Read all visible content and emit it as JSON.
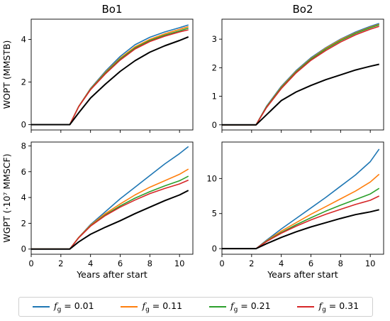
{
  "figure": {
    "legend": [
      {
        "label": "f_g = 0.01",
        "sym": "f",
        "sub": "g",
        "value": "= 0.01",
        "color": "#1f77b4"
      },
      {
        "label": "f_g = 0.11",
        "sym": "f",
        "sub": "g",
        "value": "= 0.11",
        "color": "#ff7f0e"
      },
      {
        "label": "f_g = 0.21",
        "sym": "f",
        "sub": "g",
        "value": "= 0.21",
        "color": "#2ca02c"
      },
      {
        "label": "f_g = 0.31",
        "sym": "f",
        "sub": "g",
        "value": "= 0.31",
        "color": "#d62728"
      }
    ],
    "reference_color": "#000000"
  },
  "chart_data": [
    {
      "type": "line",
      "panel": "top-left",
      "title": "Bo1",
      "ylabel": "WOPT (MMSTB)",
      "xlabel": "",
      "xlim": [
        0,
        10.9
      ],
      "ylim": [
        -0.25,
        4.95
      ],
      "xticks": [
        0,
        2,
        4,
        6,
        8,
        10
      ],
      "yticks": [
        0,
        2,
        4
      ],
      "show_xticklabels": false,
      "start": 2.6,
      "series": [
        {
          "name": "f_g = 0.01",
          "color": "#1f77b4",
          "x": [
            0,
            2.6,
            3.2,
            4.0,
            5.0,
            6.0,
            7.0,
            8.0,
            9.0,
            10.0,
            10.6
          ],
          "y": [
            0,
            0,
            0.85,
            1.7,
            2.5,
            3.2,
            3.75,
            4.1,
            4.35,
            4.55,
            4.68
          ]
        },
        {
          "name": "f_g = 0.11",
          "color": "#ff7f0e",
          "x": [
            0,
            2.6,
            3.2,
            4.0,
            5.0,
            6.0,
            7.0,
            8.0,
            9.0,
            10.0,
            10.6
          ],
          "y": [
            0,
            0,
            0.85,
            1.68,
            2.45,
            3.12,
            3.65,
            4.0,
            4.26,
            4.47,
            4.6
          ]
        },
        {
          "name": "f_g = 0.21",
          "color": "#2ca02c",
          "x": [
            0,
            2.6,
            3.2,
            4.0,
            5.0,
            6.0,
            7.0,
            8.0,
            9.0,
            10.0,
            10.6
          ],
          "y": [
            0,
            0,
            0.84,
            1.66,
            2.42,
            3.08,
            3.6,
            3.95,
            4.2,
            4.4,
            4.53
          ]
        },
        {
          "name": "f_g = 0.31",
          "color": "#d62728",
          "x": [
            0,
            2.6,
            3.2,
            4.0,
            5.0,
            6.0,
            7.0,
            8.0,
            9.0,
            10.0,
            10.6
          ],
          "y": [
            0,
            0,
            0.84,
            1.64,
            2.38,
            3.03,
            3.55,
            3.9,
            4.15,
            4.35,
            4.45
          ]
        },
        {
          "name": "",
          "color": "#000000",
          "x": [
            0,
            2.6,
            3.2,
            4.0,
            5.0,
            6.0,
            7.0,
            8.0,
            9.0,
            10.0,
            10.6
          ],
          "y": [
            0,
            0,
            0.55,
            1.25,
            1.9,
            2.5,
            3.0,
            3.4,
            3.7,
            3.95,
            4.12
          ]
        }
      ]
    },
    {
      "type": "line",
      "panel": "top-right",
      "title": "Bo2",
      "ylabel": "",
      "xlabel": "",
      "xlim": [
        0,
        10.9
      ],
      "ylim": [
        -0.18,
        3.7
      ],
      "xticks": [
        0,
        2,
        4,
        6,
        8,
        10
      ],
      "yticks": [
        0,
        1,
        2,
        3
      ],
      "show_xticklabels": false,
      "start": 2.3,
      "series": [
        {
          "name": "f_g = 0.01",
          "color": "#1f77b4",
          "x": [
            0,
            2.3,
            3.0,
            4.0,
            5.0,
            6.0,
            7.0,
            8.0,
            9.0,
            10.0,
            10.6
          ],
          "y": [
            0,
            0,
            0.65,
            1.35,
            1.9,
            2.35,
            2.7,
            3.0,
            3.25,
            3.45,
            3.55
          ]
        },
        {
          "name": "f_g = 0.11",
          "color": "#ff7f0e",
          "x": [
            0,
            2.3,
            3.0,
            4.0,
            5.0,
            6.0,
            7.0,
            8.0,
            9.0,
            10.0,
            10.6
          ],
          "y": [
            0,
            0,
            0.63,
            1.32,
            1.87,
            2.32,
            2.68,
            2.98,
            3.22,
            3.42,
            3.52
          ]
        },
        {
          "name": "f_g = 0.21",
          "color": "#2ca02c",
          "x": [
            0,
            2.3,
            3.0,
            4.0,
            5.0,
            6.0,
            7.0,
            8.0,
            9.0,
            10.0,
            10.6
          ],
          "y": [
            0,
            0,
            0.62,
            1.3,
            1.85,
            2.3,
            2.65,
            2.95,
            3.2,
            3.4,
            3.5
          ]
        },
        {
          "name": "f_g = 0.31",
          "color": "#d62728",
          "x": [
            0,
            2.3,
            3.0,
            4.0,
            5.0,
            6.0,
            7.0,
            8.0,
            9.0,
            10.0,
            10.6
          ],
          "y": [
            0,
            0,
            0.6,
            1.27,
            1.82,
            2.26,
            2.6,
            2.9,
            3.15,
            3.35,
            3.45
          ]
        },
        {
          "name": "",
          "color": "#000000",
          "x": [
            0,
            2.3,
            3.0,
            4.0,
            5.0,
            6.0,
            7.0,
            8.0,
            9.0,
            10.0,
            10.6
          ],
          "y": [
            0,
            0,
            0.35,
            0.85,
            1.15,
            1.38,
            1.58,
            1.75,
            1.92,
            2.05,
            2.12
          ]
        }
      ]
    },
    {
      "type": "line",
      "panel": "bottom-left",
      "title": "",
      "ylabel": "WGPT (·10⁷ MMSCF)",
      "xlabel": "Years after start",
      "xlim": [
        0,
        10.9
      ],
      "ylim": [
        -0.4,
        8.3
      ],
      "xticks": [
        0,
        2,
        4,
        6,
        8,
        10
      ],
      "yticks": [
        0,
        2,
        4,
        6,
        8
      ],
      "show_xticklabels": true,
      "start": 2.6,
      "series": [
        {
          "name": "f_g = 0.01",
          "color": "#1f77b4",
          "x": [
            0,
            2.6,
            3.2,
            4.0,
            5.0,
            6.0,
            7.0,
            8.0,
            9.0,
            10.0,
            10.6
          ],
          "y": [
            0,
            0,
            0.9,
            1.9,
            2.9,
            3.9,
            4.8,
            5.7,
            6.6,
            7.4,
            7.95
          ]
        },
        {
          "name": "f_g = 0.11",
          "color": "#ff7f0e",
          "x": [
            0,
            2.6,
            3.2,
            4.0,
            5.0,
            6.0,
            7.0,
            8.0,
            9.0,
            10.0,
            10.6
          ],
          "y": [
            0,
            0,
            0.9,
            1.85,
            2.75,
            3.5,
            4.2,
            4.8,
            5.3,
            5.8,
            6.2
          ]
        },
        {
          "name": "f_g = 0.21",
          "color": "#2ca02c",
          "x": [
            0,
            2.6,
            3.2,
            4.0,
            5.0,
            6.0,
            7.0,
            8.0,
            9.0,
            10.0,
            10.6
          ],
          "y": [
            0,
            0,
            0.88,
            1.8,
            2.65,
            3.35,
            3.95,
            4.45,
            4.9,
            5.3,
            5.65
          ]
        },
        {
          "name": "f_g = 0.31",
          "color": "#d62728",
          "x": [
            0,
            2.6,
            3.2,
            4.0,
            5.0,
            6.0,
            7.0,
            8.0,
            9.0,
            10.0,
            10.6
          ],
          "y": [
            0,
            0,
            0.87,
            1.78,
            2.6,
            3.25,
            3.8,
            4.3,
            4.7,
            5.05,
            5.35
          ]
        },
        {
          "name": "",
          "color": "#000000",
          "x": [
            0,
            2.6,
            3.2,
            4.0,
            5.0,
            6.0,
            7.0,
            8.0,
            9.0,
            10.0,
            10.6
          ],
          "y": [
            0,
            0,
            0.55,
            1.15,
            1.7,
            2.2,
            2.75,
            3.25,
            3.75,
            4.2,
            4.55
          ]
        }
      ]
    },
    {
      "type": "line",
      "panel": "bottom-right",
      "title": "",
      "ylabel": "",
      "xlabel": "Years after start",
      "xlim": [
        0,
        10.9
      ],
      "ylim": [
        -0.8,
        15.2
      ],
      "xticks": [
        0,
        2,
        4,
        6,
        8,
        10
      ],
      "yticks": [
        0,
        5,
        10
      ],
      "show_xticklabels": true,
      "start": 2.3,
      "series": [
        {
          "name": "f_g = 0.01",
          "color": "#1f77b4",
          "x": [
            0,
            2.3,
            3.0,
            4.0,
            5.0,
            6.0,
            7.0,
            8.0,
            9.0,
            10.0,
            10.6
          ],
          "y": [
            0,
            0,
            1.2,
            2.8,
            4.3,
            5.8,
            7.3,
            8.9,
            10.5,
            12.4,
            14.2
          ]
        },
        {
          "name": "f_g = 0.11",
          "color": "#ff7f0e",
          "x": [
            0,
            2.3,
            3.0,
            4.0,
            5.0,
            6.0,
            7.0,
            8.0,
            9.0,
            10.0,
            10.6
          ],
          "y": [
            0,
            0,
            1.1,
            2.5,
            3.7,
            4.9,
            6.0,
            7.1,
            8.2,
            9.5,
            10.6
          ]
        },
        {
          "name": "f_g = 0.21",
          "color": "#2ca02c",
          "x": [
            0,
            2.3,
            3.0,
            4.0,
            5.0,
            6.0,
            7.0,
            8.0,
            9.0,
            10.0,
            10.6
          ],
          "y": [
            0,
            0,
            1.05,
            2.3,
            3.4,
            4.4,
            5.35,
            6.2,
            7.0,
            7.8,
            8.6
          ]
        },
        {
          "name": "f_g = 0.31",
          "color": "#d62728",
          "x": [
            0,
            2.3,
            3.0,
            4.0,
            5.0,
            6.0,
            7.0,
            8.0,
            9.0,
            10.0,
            10.6
          ],
          "y": [
            0,
            0,
            1.0,
            2.2,
            3.2,
            4.1,
            4.9,
            5.6,
            6.3,
            6.9,
            7.5
          ]
        },
        {
          "name": "",
          "color": "#000000",
          "x": [
            0,
            2.3,
            3.0,
            4.0,
            5.0,
            6.0,
            7.0,
            8.0,
            9.0,
            10.0,
            10.6
          ],
          "y": [
            0,
            0,
            0.7,
            1.6,
            2.4,
            3.1,
            3.7,
            4.3,
            4.85,
            5.25,
            5.55
          ]
        }
      ]
    }
  ]
}
